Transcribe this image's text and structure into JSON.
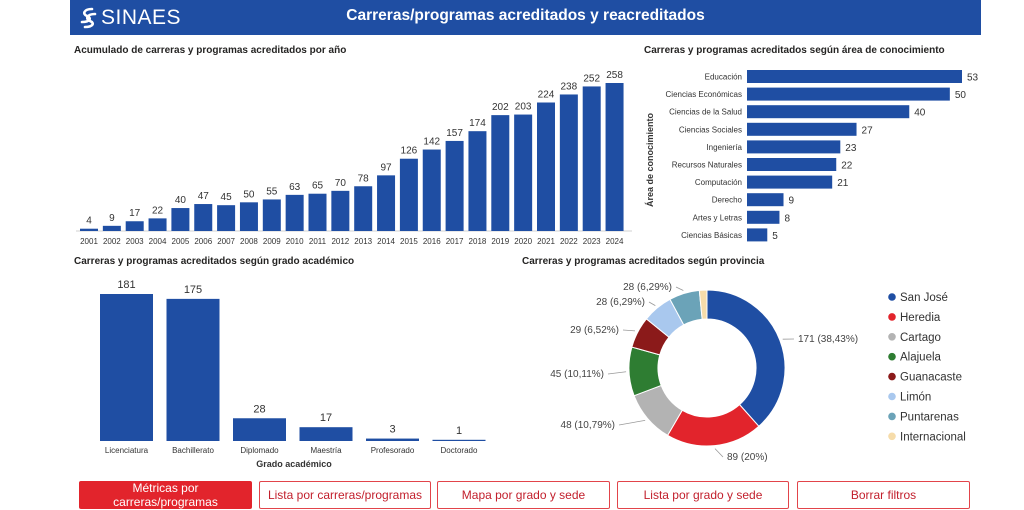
{
  "header": {
    "logo_text": "SINAES",
    "title": "Carreras/programas acreditados y reacreditados"
  },
  "colors": {
    "header_bg": "#1f4ea3",
    "bar": "#1f4ea3",
    "button_border": "#e2444a",
    "button_active_bg": "#e2242c"
  },
  "chart_data": [
    {
      "id": "cumulative",
      "type": "bar",
      "title": "Acumulado de carreras y programas acreditados por año",
      "categories": [
        "2001",
        "2002",
        "2003",
        "2004",
        "2005",
        "2006",
        "2007",
        "2008",
        "2009",
        "2010",
        "2011",
        "2012",
        "2013",
        "2014",
        "2015",
        "2016",
        "2017",
        "2018",
        "2019",
        "2020",
        "2021",
        "2022",
        "2023",
        "2024"
      ],
      "values": [
        4,
        9,
        17,
        22,
        40,
        47,
        45,
        50,
        55,
        63,
        65,
        70,
        78,
        97,
        126,
        142,
        157,
        174,
        202,
        203,
        224,
        238,
        252,
        258
      ],
      "xlabel": "",
      "ylabel": "",
      "ylim": [
        0,
        258
      ]
    },
    {
      "id": "area",
      "type": "bar",
      "orientation": "horizontal",
      "title": "Carreras y programas acreditados según área de conocimiento",
      "categories": [
        "Educación",
        "Ciencias Económicas",
        "Ciencias de la Salud",
        "Ciencias Sociales",
        "Ingeniería",
        "Recursos Naturales",
        "Computación",
        "Derecho",
        "Artes y Letras",
        "Ciencias Básicas"
      ],
      "values": [
        53,
        50,
        40,
        27,
        23,
        22,
        21,
        9,
        8,
        5
      ],
      "ylabel": "Área de conocimiento",
      "xlim": [
        0,
        53
      ]
    },
    {
      "id": "degree",
      "type": "bar",
      "title": "Carreras y programas acreditados según grado académico",
      "categories": [
        "Licenciatura",
        "Bachillerato",
        "Diplomado",
        "Maestría",
        "Profesorado",
        "Doctorado"
      ],
      "values": [
        181,
        175,
        28,
        17,
        3,
        1
      ],
      "xlabel": "Grado académico",
      "ylim": [
        0,
        181
      ]
    },
    {
      "id": "province",
      "type": "pie",
      "donut": true,
      "title": "Carreras y programas acreditados según provincia",
      "labels": [
        "San José",
        "Heredia",
        "Cartago",
        "Alajuela",
        "Guanacaste",
        "Limón",
        "Puntarenas",
        "Internacional"
      ],
      "values": [
        171,
        89,
        48,
        45,
        29,
        28,
        28,
        7
      ],
      "data_labels": [
        "171 (38,43%)",
        "89 (20%)",
        "48 (10,79%)",
        "45 (10,11%)",
        "29 (6,52%)",
        "28 (6,29%)",
        "28 (6,29%)",
        ""
      ],
      "colors": [
        "#1f4ea3",
        "#e2242c",
        "#b3b3b3",
        "#2e7d32",
        "#8b1a1a",
        "#a9c8ee",
        "#6ba3b8",
        "#f6dcaa"
      ],
      "legend_position": "right"
    }
  ],
  "buttons": [
    {
      "label": "Métricas por carreras/programas",
      "active": true
    },
    {
      "label": "Lista por carreras/programas",
      "active": false
    },
    {
      "label": "Mapa por grado y sede",
      "active": false
    },
    {
      "label": "Lista por grado y sede",
      "active": false
    },
    {
      "label": "Borrar filtros",
      "active": false
    }
  ]
}
